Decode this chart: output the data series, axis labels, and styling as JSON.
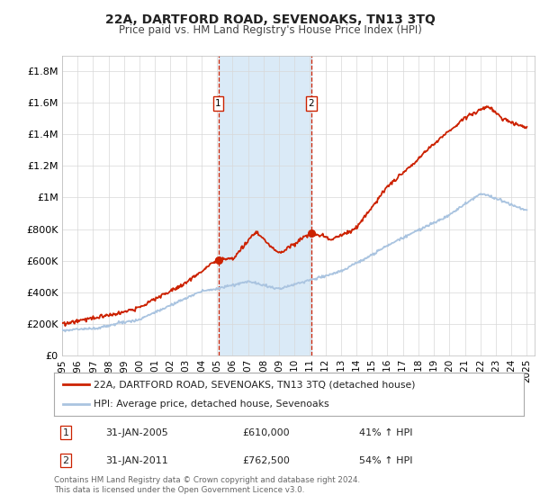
{
  "title": "22A, DARTFORD ROAD, SEVENOAKS, TN13 3TQ",
  "subtitle": "Price paid vs. HM Land Registry's House Price Index (HPI)",
  "hpi_color": "#aac4e0",
  "price_color": "#cc2200",
  "highlight_color": "#daeaf7",
  "vline_color": "#cc2200",
  "marker1_year": 2005.08,
  "marker2_year": 2011.08,
  "ylim_min": 0,
  "ylim_max": 1900000,
  "xlim_min": 1995,
  "xlim_max": 2025.5,
  "legend_entries": [
    "22A, DARTFORD ROAD, SEVENOAKS, TN13 3TQ (detached house)",
    "HPI: Average price, detached house, Sevenoaks"
  ],
  "table_rows": [
    [
      "1",
      "31-JAN-2005",
      "£610,000",
      "41% ↑ HPI"
    ],
    [
      "2",
      "31-JAN-2011",
      "£762,500",
      "54% ↑ HPI"
    ]
  ],
  "footnote": "Contains HM Land Registry data © Crown copyright and database right 2024.\nThis data is licensed under the Open Government Licence v3.0.",
  "yticks": [
    0,
    200000,
    400000,
    600000,
    800000,
    1000000,
    1200000,
    1400000,
    1600000,
    1800000
  ],
  "ytick_labels": [
    "£0",
    "£200K",
    "£400K",
    "£600K",
    "£800K",
    "£1M",
    "£1.2M",
    "£1.4M",
    "£1.6M",
    "£1.8M"
  ]
}
